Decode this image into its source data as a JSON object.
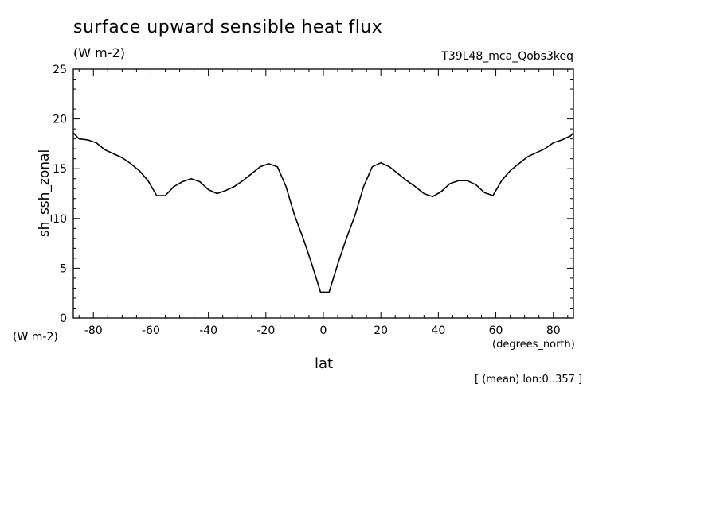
{
  "header": {
    "title": "surface upward sensible heat flux",
    "units": "(W m-2)",
    "experiment": "T39L48_mca_Qobs3keq"
  },
  "footer": {
    "y_units": "(W m-2)",
    "x_units": "(degrees_north)",
    "note": "[ (mean) lon:0..357 ]"
  },
  "chart_data": {
    "type": "line",
    "title": "surface upward sensible heat flux",
    "xlabel": "lat",
    "ylabel": "sh_ssh_zonal",
    "xlim": [
      -87,
      87
    ],
    "ylim": [
      0,
      25
    ],
    "grid": false,
    "x_ticks": [
      -80,
      -60,
      -40,
      -20,
      0,
      20,
      40,
      60,
      80
    ],
    "y_ticks": [
      0,
      5,
      10,
      15,
      20,
      25
    ],
    "series": [
      {
        "color": "#000000",
        "x": [
          -87,
          -85,
          -82,
          -79,
          -76,
          -73,
          -70,
          -67,
          -64,
          -61,
          -58,
          -55,
          -52,
          -49,
          -46,
          -43,
          -40,
          -37,
          -34,
          -31,
          -28,
          -25,
          -22,
          -19,
          -16,
          -13,
          -10,
          -7,
          -4,
          -1,
          2,
          5,
          8,
          11,
          14,
          17,
          20,
          23,
          26,
          29,
          32,
          35,
          38,
          41,
          44,
          47,
          50,
          53,
          56,
          59,
          62,
          65,
          68,
          71,
          74,
          77,
          80,
          83,
          86,
          87
        ],
        "y": [
          18.6,
          18.0,
          17.9,
          17.6,
          16.9,
          16.5,
          16.1,
          15.5,
          14.8,
          13.8,
          12.3,
          12.3,
          13.2,
          13.7,
          14.0,
          13.7,
          12.9,
          12.5,
          12.8,
          13.2,
          13.8,
          14.5,
          15.2,
          15.5,
          15.2,
          13.2,
          10.3,
          8.0,
          5.4,
          2.6,
          2.6,
          5.4,
          8.0,
          10.3,
          13.2,
          15.2,
          15.6,
          15.2,
          14.5,
          13.8,
          13.2,
          12.5,
          12.2,
          12.7,
          13.5,
          13.8,
          13.8,
          13.4,
          12.6,
          12.3,
          13.8,
          14.8,
          15.5,
          16.2,
          16.6,
          17.0,
          17.6,
          17.9,
          18.3,
          18.6
        ]
      }
    ]
  }
}
